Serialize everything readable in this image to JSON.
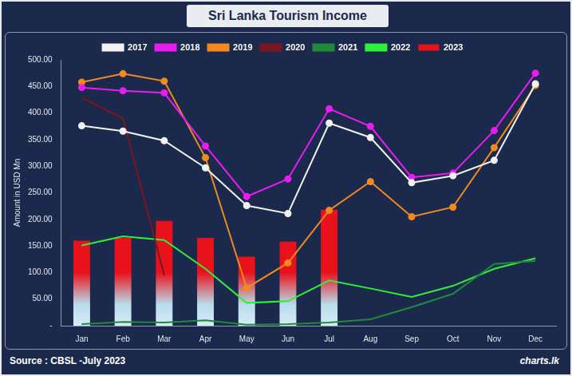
{
  "chart_data": {
    "type": "bar",
    "title": "Sri Lanka Tourism Income",
    "y_label": "Amount in USD Mn",
    "annotations": [
      "Source : CBSL -July 2023",
      "charts.lk"
    ],
    "categories": [
      "Jan",
      "Feb",
      "Mar",
      "Apr",
      "May",
      "Jun",
      "Jul",
      "Aug",
      "Sep",
      "Oct",
      "Nov",
      "Dec"
    ],
    "series": [
      {
        "name": "2023",
        "type": "bar",
        "color": "#e8121c",
        "values": [
          160,
          165,
          197,
          165,
          130,
          158,
          218,
          null,
          null,
          null,
          null,
          null
        ]
      },
      {
        "name": "2017",
        "type": "line",
        "color": "#f2f2f2",
        "marker": "circle",
        "values": [
          376,
          366,
          348,
          297,
          226,
          211,
          381,
          354,
          269,
          282,
          311,
          455
        ]
      },
      {
        "name": "2018",
        "type": "line",
        "color": "#e81cf0",
        "marker": "circle",
        "values": [
          448,
          442,
          438,
          338,
          243,
          276,
          408,
          375,
          279,
          287,
          367,
          475
        ]
      },
      {
        "name": "2019",
        "type": "line",
        "color": "#f28a1c",
        "marker": "circle",
        "values": [
          458,
          474,
          460,
          316,
          71,
          118,
          217,
          271,
          205,
          223,
          335,
          452
        ]
      },
      {
        "name": "2020",
        "type": "line",
        "color": "#7a1620",
        "marker": "none",
        "values": [
          429,
          390,
          95,
          null,
          null,
          null,
          null,
          null,
          null,
          null,
          null,
          null
        ]
      },
      {
        "name": "2021",
        "type": "line",
        "color": "#1f8a3a",
        "marker": "none",
        "values": [
          3,
          7,
          6,
          10,
          2,
          3,
          6,
          12,
          35,
          60,
          116,
          122
        ]
      },
      {
        "name": "2022",
        "type": "line",
        "color": "#2ef03a",
        "marker": "none",
        "values": [
          151,
          168,
          161,
          107,
          43,
          46,
          85,
          70,
          54,
          75,
          107,
          127
        ]
      }
    ],
    "ylim": [
      0,
      500
    ],
    "yticks": [
      {
        "value": 0,
        "label": "-"
      },
      {
        "value": 50,
        "label": "50.00"
      },
      {
        "value": 100,
        "label": "100.00"
      },
      {
        "value": 150,
        "label": "150.00"
      },
      {
        "value": 200,
        "label": "200.00"
      },
      {
        "value": 250,
        "label": "250.00"
      },
      {
        "value": 300,
        "label": "300.00"
      },
      {
        "value": 350,
        "label": "350.00"
      },
      {
        "value": 400,
        "label": "400.00"
      },
      {
        "value": 450,
        "label": "450.00"
      },
      {
        "value": 500,
        "label": "500.00"
      }
    ],
    "grid": false,
    "legend": "top"
  }
}
